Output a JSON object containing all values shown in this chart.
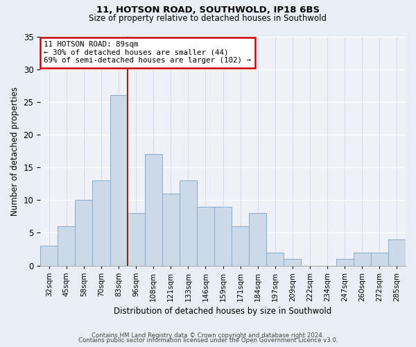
{
  "title": "11, HOTSON ROAD, SOUTHWOLD, IP18 6BS",
  "subtitle": "Size of property relative to detached houses in Southwold",
  "xlabel": "Distribution of detached houses by size in Southwold",
  "ylabel": "Number of detached properties",
  "categories": [
    "32sqm",
    "45sqm",
    "58sqm",
    "70sqm",
    "83sqm",
    "96sqm",
    "108sqm",
    "121sqm",
    "133sqm",
    "146sqm",
    "159sqm",
    "171sqm",
    "184sqm",
    "197sqm",
    "209sqm",
    "222sqm",
    "234sqm",
    "247sqm",
    "260sqm",
    "272sqm",
    "285sqm"
  ],
  "values": [
    3,
    6,
    10,
    13,
    26,
    8,
    17,
    11,
    13,
    9,
    9,
    6,
    8,
    2,
    1,
    0,
    0,
    1,
    2,
    2,
    4
  ],
  "bar_color": "#ccd9e8",
  "bar_edge_color": "#88aac8",
  "bar_width": 1.0,
  "ylim": [
    0,
    35
  ],
  "yticks": [
    0,
    5,
    10,
    15,
    20,
    25,
    30,
    35
  ],
  "redline_x": 4.5,
  "annotation_title": "11 HOTSON ROAD: 89sqm",
  "annotation_line1": "← 30% of detached houses are smaller (44)",
  "annotation_line2": "69% of semi-detached houses are larger (102) →",
  "annotation_box_color": "#ffffff",
  "annotation_box_edge": "#cc0000",
  "redline_color": "#cc0000",
  "footer1": "Contains HM Land Registry data © Crown copyright and database right 2024.",
  "footer2": "Contains public sector information licensed under the Open Government Licence v3.0.",
  "background_color": "#e8eef5",
  "plot_background": "#eef2f8",
  "grid_color": "#d0d8e8"
}
